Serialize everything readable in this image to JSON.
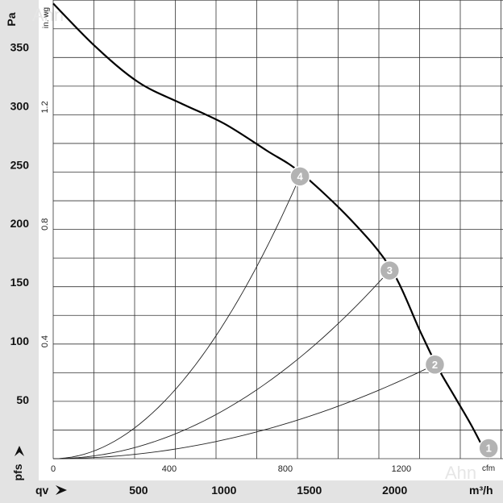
{
  "chart_data": {
    "type": "line",
    "y_left": {
      "unit": "Pa",
      "label": "pfs",
      "ticks": [
        50,
        100,
        150,
        200,
        250,
        300,
        350
      ],
      "range": [
        0,
        390
      ]
    },
    "y_inner": {
      "unit": "in. wg",
      "ticks": [
        "0.4",
        "0.8",
        "1.2"
      ]
    },
    "x_bottom": {
      "unit": "m³/h",
      "label": "qv",
      "ticks": [
        500,
        1000,
        1500,
        2000
      ],
      "range": [
        0,
        2634
      ]
    },
    "x_inner": {
      "unit": "cfm",
      "ticks": [
        "0",
        "400",
        "800",
        "1200"
      ]
    },
    "grid": true,
    "series": [
      {
        "x": [
          0,
          250,
          500,
          750,
          1000,
          1250,
          1450,
          1750,
          1980,
          2150,
          2250,
          2350,
          2450,
          2550
        ],
        "y": [
          387,
          350,
          320,
          302,
          285,
          262,
          243,
          202,
          161,
          108,
          78,
          53,
          28,
          0
        ]
      }
    ],
    "operating_points": [
      {
        "label": "1",
        "x": 2550,
        "y": 0
      },
      {
        "label": "2",
        "x": 2235,
        "y": 80
      },
      {
        "label": "3",
        "x": 1970,
        "y": 160
      },
      {
        "label": "4",
        "x": 1445,
        "y": 240
      }
    ],
    "system_curves": [
      {
        "to_point": "2"
      },
      {
        "to_point": "3"
      },
      {
        "to_point": "4"
      }
    ],
    "watermark": "Ahn"
  }
}
